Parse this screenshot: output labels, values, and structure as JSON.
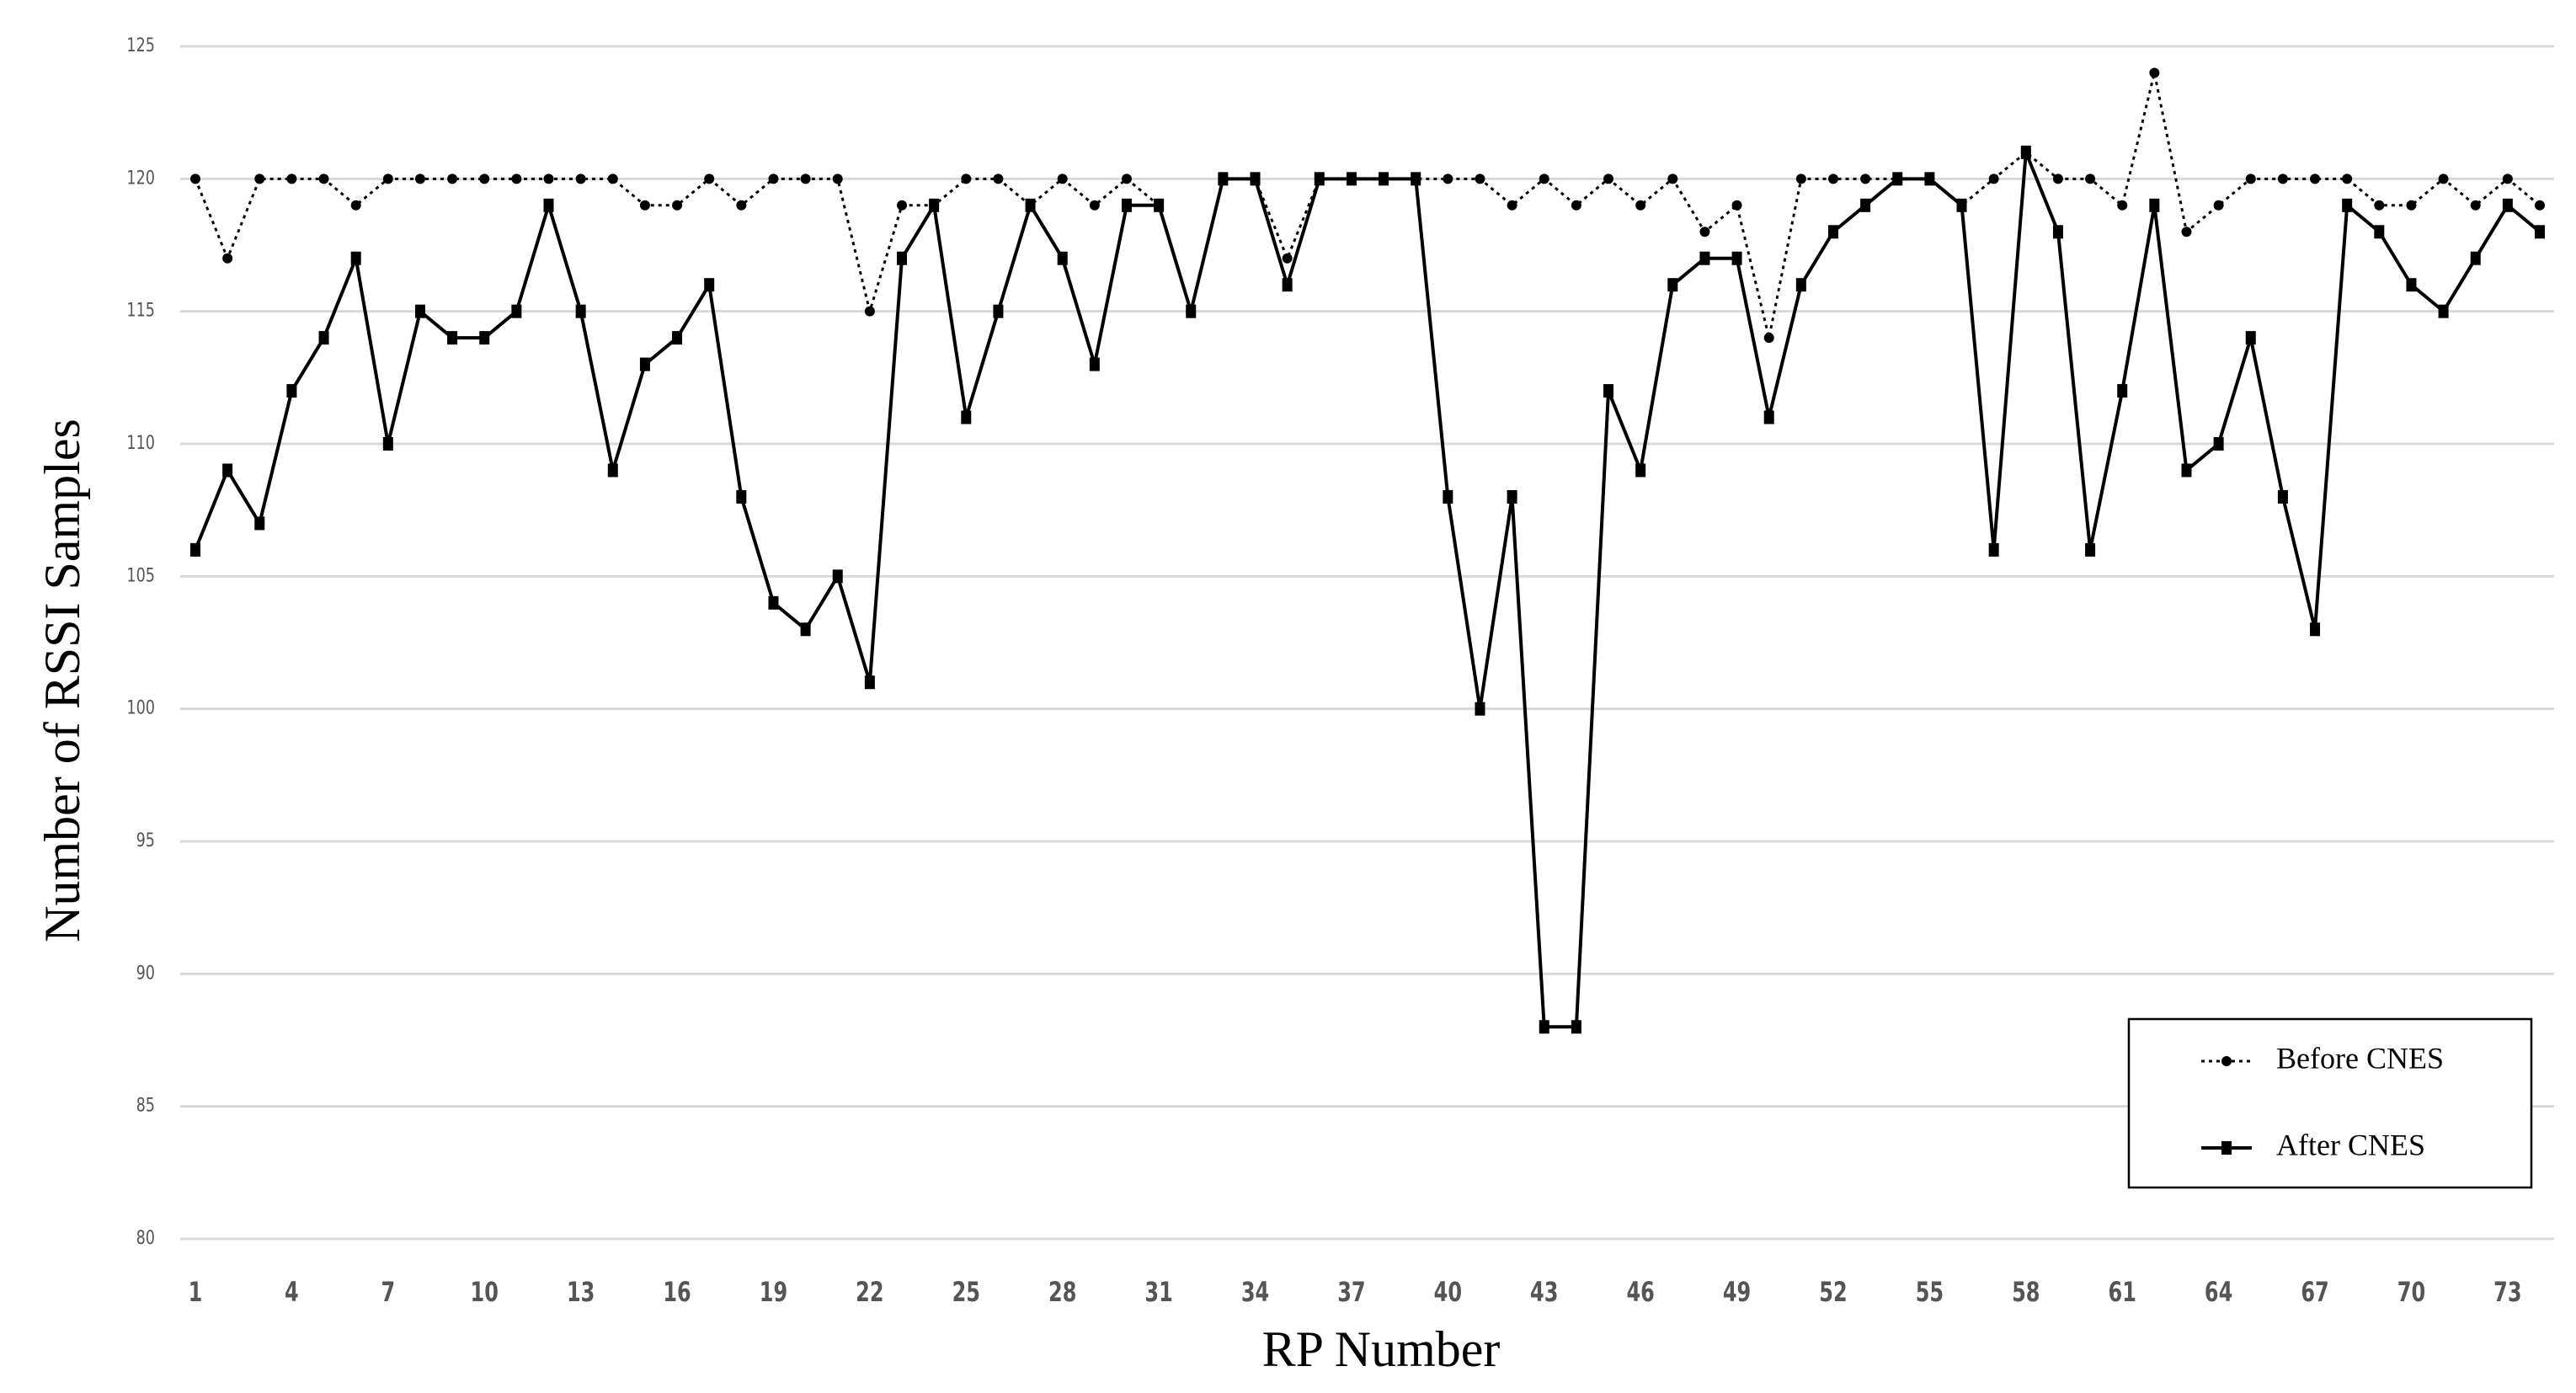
{
  "chart_data": {
    "type": "line",
    "x_label": "RP Number",
    "y_label": "Number of RSSI Samples",
    "x": [
      1,
      2,
      3,
      4,
      5,
      6,
      7,
      8,
      9,
      10,
      11,
      12,
      13,
      14,
      15,
      16,
      17,
      18,
      19,
      20,
      21,
      22,
      23,
      24,
      25,
      26,
      27,
      28,
      29,
      30,
      31,
      32,
      33,
      34,
      35,
      36,
      37,
      38,
      39,
      40,
      41,
      42,
      43,
      44,
      45,
      46,
      47,
      48,
      49,
      50,
      51,
      52,
      53,
      54,
      55,
      56,
      57,
      58,
      59,
      60,
      61,
      62,
      63,
      64,
      65,
      66,
      67,
      68,
      69,
      70,
      71,
      72,
      73,
      74
    ],
    "xlim": [
      1,
      74
    ],
    "xticks": [
      1,
      4,
      7,
      10,
      13,
      16,
      19,
      22,
      25,
      28,
      31,
      34,
      37,
      40,
      43,
      46,
      49,
      52,
      55,
      58,
      61,
      64,
      67,
      70,
      73
    ],
    "ylim": [
      80,
      125
    ],
    "yticks": [
      80,
      85,
      90,
      95,
      100,
      105,
      110,
      115,
      120,
      125
    ],
    "grid": true,
    "legend_position": "lower right",
    "series": [
      {
        "name": "Before CNES",
        "color": "#000000",
        "line_style": "dotted",
        "marker": "circle",
        "values": [
          120,
          117,
          120,
          120,
          120,
          119,
          120,
          120,
          120,
          120,
          120,
          120,
          120,
          120,
          119,
          119,
          120,
          119,
          120,
          120,
          120,
          115,
          119,
          119,
          120,
          120,
          119,
          120,
          119,
          120,
          119,
          115,
          120,
          120,
          117,
          120,
          120,
          120,
          120,
          120,
          120,
          119,
          120,
          119,
          120,
          119,
          120,
          118,
          119,
          114,
          120,
          120,
          120,
          120,
          120,
          119,
          120,
          121,
          120,
          120,
          119,
          124,
          118,
          119,
          120,
          120,
          120,
          120,
          119,
          119,
          120,
          119,
          120,
          119
        ]
      },
      {
        "name": "After CNES",
        "color": "#000000",
        "line_style": "solid",
        "marker": "square",
        "values": [
          106,
          109,
          107,
          112,
          114,
          117,
          110,
          115,
          114,
          114,
          115,
          119,
          115,
          109,
          113,
          114,
          116,
          108,
          104,
          103,
          105,
          101,
          117,
          119,
          111,
          115,
          119,
          117,
          113,
          119,
          119,
          115,
          120,
          120,
          116,
          120,
          120,
          120,
          120,
          108,
          100,
          108,
          88,
          88,
          112,
          109,
          116,
          117,
          117,
          111,
          116,
          118,
          119,
          120,
          120,
          119,
          106,
          121,
          118,
          106,
          112,
          119,
          109,
          110,
          114,
          108,
          103,
          119,
          118,
          116,
          115,
          117,
          119,
          118
        ]
      }
    ]
  }
}
